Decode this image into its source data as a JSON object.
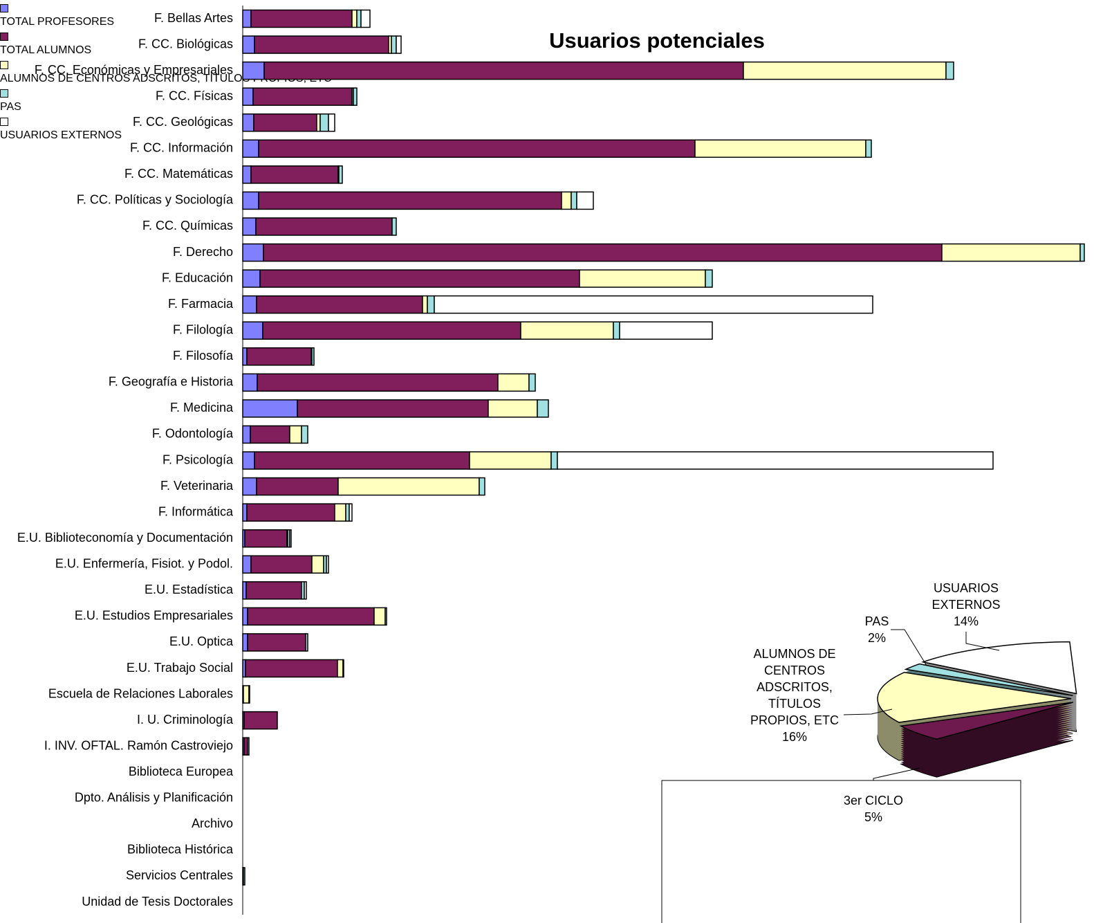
{
  "chart_data": [
    {
      "type": "stacked-barh",
      "title": "Usuarios potenciales",
      "categories": [
        "F. Bellas Artes",
        "F. CC. Biológicas",
        "F. CC. Económicas y Empresariales",
        "F. CC. Físicas",
        "F. CC. Geológicas",
        "F. CC. Información",
        "F. CC. Matemáticas",
        "F. CC. Políticas y Sociología",
        "F. CC. Químicas",
        "F. Derecho",
        "F. Educación",
        "F. Farmacia",
        "F. Filología",
        "F. Filosofía",
        "F. Geografía e Historia",
        "F. Medicina",
        "F. Odontología",
        "F. Psicología",
        "F. Veterinaria",
        "F. Informática",
        "E.U. Biblioteconomía y Documentación",
        "E.U. Enfermería, Fisiot. y Podol.",
        "E.U. Estadística",
        "E.U. Estudios Empresariales",
        "E.U. Optica",
        "E.U. Trabajo Social",
        "Escuela de Relaciones Laborales",
        "I. U. Criminología",
        "I. INV. OFTAL. Ramón Castroviejo",
        "Biblioteca Europea",
        "Dpto. Análisis y Planificación",
        "Archivo",
        "Biblioteca Histórica",
        "Servicios Centrales",
        "Unidad de Tesis Doctorales"
      ],
      "series": [
        {
          "name": "TOTAL PROFESORES",
          "color": "#8080ff",
          "values": [
            12,
            17,
            31,
            15,
            16,
            23,
            12,
            23,
            19,
            30,
            25,
            20,
            29,
            6,
            21,
            79,
            11,
            17,
            20,
            6,
            3,
            12,
            5,
            7,
            7,
            4,
            1,
            2,
            2,
            0,
            0,
            0,
            0,
            1,
            0
          ]
        },
        {
          "name": "TOTAL ALUMNOS",
          "color": "#801f5c",
          "values": [
            146,
            194,
            693,
            143,
            91,
            631,
            126,
            438,
            197,
            981,
            462,
            240,
            373,
            93,
            348,
            276,
            57,
            311,
            118,
            127,
            61,
            88,
            80,
            183,
            84,
            133,
            0,
            48,
            5,
            0,
            0,
            0,
            0,
            0,
            0
          ]
        },
        {
          "name": "ALUMNOS DE CENTROS ADSCRITOS, TÍTULOS PROPIOS, ETC",
          "color": "#ffffc0",
          "values": [
            7,
            4,
            293,
            2,
            5,
            247,
            1,
            14,
            0,
            200,
            182,
            7,
            134,
            1,
            45,
            71,
            17,
            118,
            204,
            16,
            1,
            17,
            0,
            16,
            0,
            8,
            8,
            0,
            0,
            0,
            0,
            0,
            0,
            0,
            0
          ]
        },
        {
          "name": "PAS",
          "color": "#a0e0e0",
          "values": [
            6,
            7,
            11,
            5,
            12,
            8,
            5,
            8,
            6,
            6,
            10,
            10,
            9,
            3,
            9,
            16,
            9,
            9,
            8,
            5,
            3,
            4,
            4,
            2,
            3,
            1,
            1,
            0,
            2,
            0,
            0,
            0,
            0,
            2,
            0
          ]
        },
        {
          "name": "USUARIOS EXTERNOS",
          "color": "#ffffff",
          "values": [
            13,
            7,
            0,
            0,
            9,
            0,
            0,
            24,
            0,
            0,
            0,
            634,
            134,
            0,
            0,
            0,
            0,
            630,
            0,
            4,
            2,
            3,
            3,
            0,
            0,
            0,
            0,
            0,
            0,
            0,
            0,
            0,
            0,
            0,
            0
          ]
        }
      ],
      "xlim": [
        0,
        1231
      ]
    },
    {
      "type": "pie",
      "categories": [
        "USUARIOS EXTERNOS",
        "PAS",
        "ALUMNOS DE CENTROS ADSCRITOS, TÍTULOS PROPIOS, ETC",
        "3er CICLO"
      ],
      "values": [
        14,
        2,
        16,
        5
      ],
      "value_labels": [
        "14%",
        "2%",
        "16%",
        "5%"
      ],
      "colors": [
        "#ffffff",
        "#a0e0e0",
        "#ffffc0",
        "#5a1540"
      ]
    }
  ]
}
